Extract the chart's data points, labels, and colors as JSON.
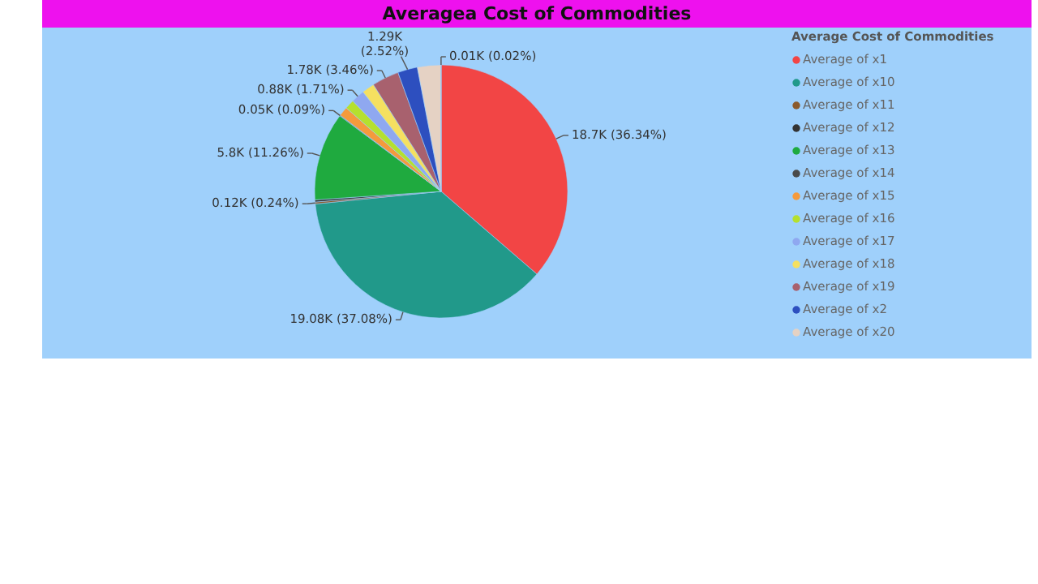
{
  "chart_data": {
    "type": "pie",
    "title": "Averagea Cost of Commodities",
    "legend_title": "Average Cost of Commodities",
    "legend": "right",
    "categories": [
      "Average of x1",
      "Average of x10",
      "Average of x11",
      "Average of x12",
      "Average of x13",
      "Average of x14",
      "Average of x15",
      "Average of x16",
      "Average of x17",
      "Average of x18",
      "Average of x19",
      "Average of x2",
      "Average of x20",
      null
    ],
    "values": [
      36.34,
      37.08,
      0.24,
      0.28,
      11.26,
      0.09,
      1.2,
      1.2,
      1.71,
      1.6,
      3.46,
      2.52,
      3.0,
      0.02
    ],
    "colors": [
      "#f24545",
      "#21998a",
      "#8b5a2b",
      "#333333",
      "#1faa3f",
      "#4a4a4a",
      "#f59a3c",
      "#b5e02e",
      "#8fa8f0",
      "#f5e060",
      "#a8616e",
      "#2d4fbf",
      "#e5d2c4",
      "#a0a0a0"
    ],
    "value_labels": [
      "18.7K (36.34%)",
      "19.08K (37.08%)",
      "0.12K (0.24%)",
      null,
      "5.8K (11.26%)",
      "0.05K (0.09%)",
      null,
      null,
      "0.88K (1.71%)",
      null,
      "1.78K (3.46%)",
      "1.29K (2.52%)",
      null,
      "0.01K (0.02%)"
    ]
  }
}
